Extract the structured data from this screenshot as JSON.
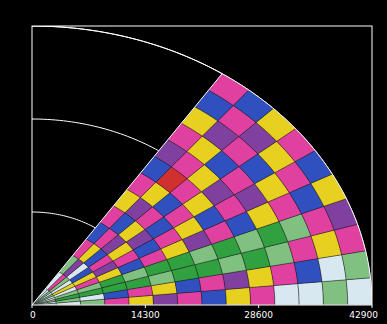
{
  "chart_data": {
    "type": "polar_sector",
    "xlim": [
      0,
      42900
    ],
    "ylim": [
      0,
      42900
    ],
    "xticks": [
      0,
      14300,
      28600,
      42900
    ],
    "rticks": [
      14300,
      28600,
      42900
    ],
    "theta_lim": [
      0,
      56
    ],
    "tick_labels": "x",
    "colors": [
      "#e040a0",
      "#e8d020",
      "#30a040",
      "#3050c0",
      "#8040a0",
      "#d8e8f0",
      "#80c080",
      "#d03030"
    ],
    "cells": [
      [
        5,
        5,
        6,
        5,
        5,
        6,
        5,
        6,
        5,
        5
      ],
      [
        5,
        6,
        2,
        6,
        5,
        1,
        5,
        6,
        0,
        5
      ],
      [
        6,
        5,
        2,
        6,
        0,
        1,
        3,
        5,
        4,
        6
      ],
      [
        0,
        3,
        2,
        2,
        1,
        4,
        0,
        3,
        1,
        0
      ],
      [
        1,
        0,
        2,
        6,
        3,
        0,
        1,
        4,
        0,
        3
      ],
      [
        4,
        1,
        6,
        2,
        0,
        3,
        4,
        1,
        3,
        0
      ],
      [
        0,
        3,
        2,
        2,
        1,
        0,
        3,
        0,
        4,
        1
      ],
      [
        3,
        0,
        2,
        6,
        4,
        1,
        0,
        3,
        1,
        0
      ],
      [
        1,
        4,
        6,
        2,
        0,
        3,
        1,
        0,
        7,
        3
      ],
      [
        0,
        1,
        2,
        6,
        3,
        0,
        4,
        1,
        0,
        4
      ],
      [
        5,
        0,
        6,
        2,
        1,
        4,
        0,
        3,
        1,
        0
      ],
      [
        5,
        3,
        0,
        6,
        0,
        1,
        3,
        0,
        4,
        1
      ],
      [
        6,
        5,
        1,
        0,
        3,
        0,
        1,
        4,
        0,
        3
      ],
      [
        5,
        6,
        0,
        4,
        1,
        3,
        0,
        1,
        3,
        0
      ]
    ]
  }
}
